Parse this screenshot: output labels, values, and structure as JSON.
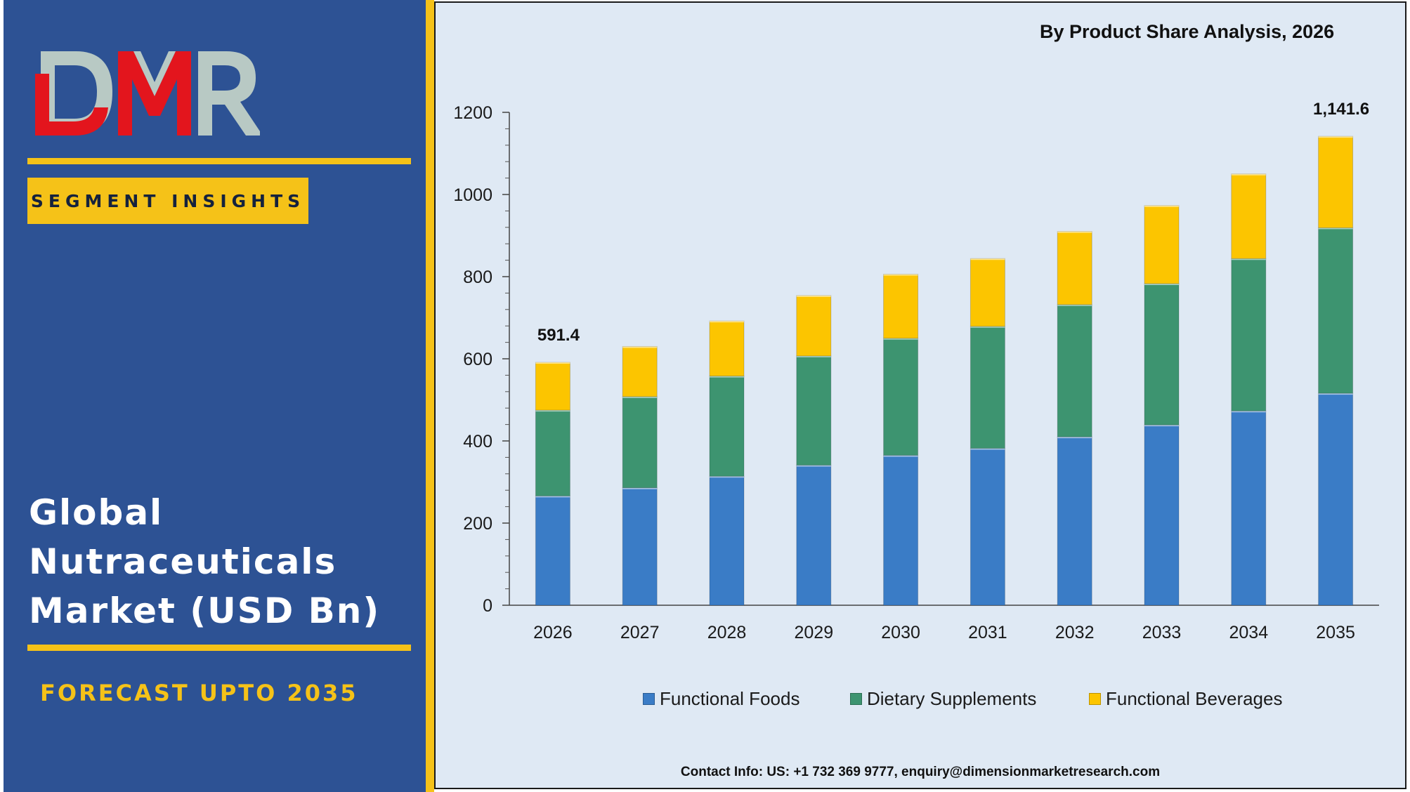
{
  "brand": {
    "logo_text": "DMR",
    "segment_label": "SEGMENT INSIGHTS",
    "market_title_lines": [
      "Global",
      "Nutraceuticals",
      "Market (USD Bn)"
    ],
    "forecast_label": "FORECAST UPTO 2035"
  },
  "colors": {
    "panel_blue": "#2d5294",
    "gold": "#f5c218",
    "logo_red": "#e3151d",
    "logo_grey": "#b8c9c4",
    "chart_background": "#dfe9f4"
  },
  "chart_data": {
    "type": "bar",
    "stacked": true,
    "title": "By Product Share Analysis, 2026",
    "xlabel": "",
    "ylabel": "",
    "ylim": [
      0,
      1200
    ],
    "yticks": [
      0,
      200,
      400,
      600,
      800,
      1000,
      1200
    ],
    "categories": [
      "2026",
      "2027",
      "2028",
      "2029",
      "2030",
      "2031",
      "2032",
      "2033",
      "2034",
      "2035"
    ],
    "series": [
      {
        "name": "Functional Foods",
        "color": "#3a7cc6",
        "values": [
          266,
          286,
          314,
          341,
          365,
          382,
          410,
          439,
          473,
          516
        ]
      },
      {
        "name": "Dietary Supplements",
        "color": "#3d9470",
        "values": [
          209,
          222,
          244,
          266,
          285,
          297,
          322,
          344,
          371,
          403
        ]
      },
      {
        "name": "Functional Beverages",
        "color": "#fcc500",
        "values": [
          116.4,
          122,
          134,
          147,
          156,
          165,
          178,
          190,
          206,
          222.6
        ]
      }
    ],
    "data_labels": [
      {
        "category": "2026",
        "text": "591.4"
      },
      {
        "category": "2035",
        "text": "1,141.6"
      }
    ],
    "legend_position": "bottom",
    "grid": false
  },
  "footer": {
    "contact": "Contact Info: US: +1 732 369 9777, enquiry@dimensionmarketresearch.com"
  }
}
